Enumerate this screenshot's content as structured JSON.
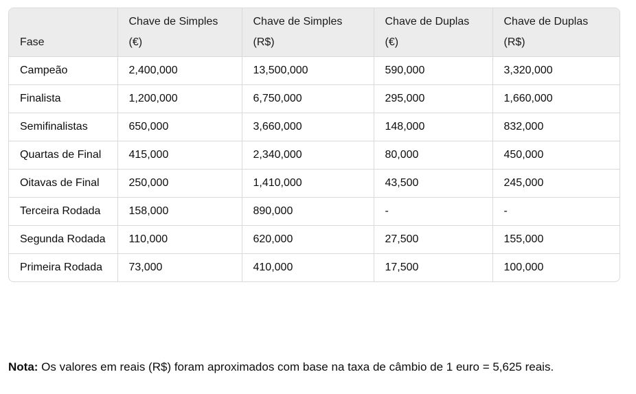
{
  "table": {
    "headers": [
      "Fase",
      "Chave de Simples (€)",
      "Chave de Simples (R$)",
      "Chave de Duplas (€)",
      "Chave de Duplas (R$)"
    ],
    "rows": [
      [
        "Campeão",
        "2,400,000",
        "13,500,000",
        "590,000",
        "3,320,000"
      ],
      [
        "Finalista",
        "1,200,000",
        "6,750,000",
        "295,000",
        "1,660,000"
      ],
      [
        "Semifinalistas",
        "650,000",
        "3,660,000",
        "148,000",
        "832,000"
      ],
      [
        "Quartas de Final",
        "415,000",
        "2,340,000",
        "80,000",
        "450,000"
      ],
      [
        "Oitavas de Final",
        "250,000",
        "1,410,000",
        "43,500",
        "245,000"
      ],
      [
        "Terceira Rodada",
        "158,000",
        "890,000",
        "-",
        "-"
      ],
      [
        "Segunda Rodada",
        "110,000",
        "620,000",
        "27,500",
        "155,000"
      ],
      [
        "Primeira Rodada",
        "73,000",
        "410,000",
        "17,500",
        "100,000"
      ]
    ]
  },
  "note": {
    "label": "Nota:",
    "text": " Os valores em reais (R$) foram aproximados com base na taxa de câmbio de 1 euro = 5,625 reais."
  }
}
